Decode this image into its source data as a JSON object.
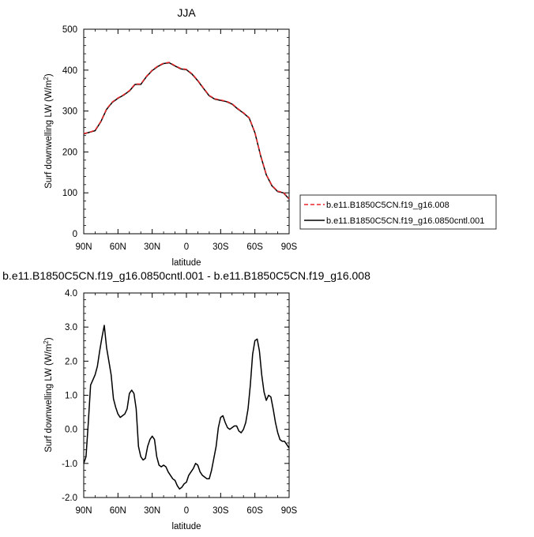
{
  "chart_data": [
    {
      "type": "line",
      "title": "JJA",
      "xlabel": "latitude",
      "ylabel_main": "Surf downwelling LW (W/m",
      "ylabel_sup": "2",
      "ylabel_close": ")",
      "xlim": [
        90,
        -90
      ],
      "ylim": [
        0,
        500
      ],
      "xticks": [
        90,
        60,
        30,
        0,
        -30,
        -60,
        -90
      ],
      "xtick_labels": [
        "90N",
        "60N",
        "30N",
        "0",
        "30S",
        "60S",
        "90S"
      ],
      "yticks": [
        0,
        100,
        200,
        300,
        400,
        500
      ],
      "ytick_labels": [
        "0",
        "100",
        "200",
        "300",
        "400",
        "500"
      ],
      "legend_position": "right",
      "series": [
        {
          "name": "b.e11.B1850C5CN.f19_g16.008",
          "color": "#e8262a",
          "dash": "dashed",
          "x": [
            90,
            85,
            80,
            75,
            70,
            65,
            60,
            55,
            50,
            45,
            40,
            35,
            30,
            25,
            20,
            15,
            10,
            5,
            0,
            -5,
            -10,
            -15,
            -20,
            -25,
            -30,
            -35,
            -40,
            -45,
            -50,
            -55,
            -60,
            -65,
            -70,
            -75,
            -80,
            -85,
            -90
          ],
          "y": [
            245,
            248,
            253,
            275,
            305,
            322,
            332,
            340,
            350,
            366,
            366,
            385,
            400,
            410,
            417,
            419,
            411,
            404,
            402,
            391,
            375,
            356,
            338,
            330,
            327,
            324,
            318,
            306,
            296,
            284,
            248,
            192,
            145,
            118,
            104,
            101,
            86
          ]
        },
        {
          "name": "b.e11.B1850C5CN.f19_g16.0850cntl.001",
          "color": "#000000",
          "dash": "solid",
          "x": [
            90,
            85,
            80,
            75,
            70,
            65,
            60,
            55,
            50,
            45,
            40,
            35,
            30,
            25,
            20,
            15,
            10,
            5,
            0,
            -5,
            -10,
            -15,
            -20,
            -25,
            -30,
            -35,
            -40,
            -45,
            -50,
            -55,
            -60,
            -65,
            -70,
            -75,
            -80,
            -85,
            -90
          ],
          "y": [
            244,
            248,
            252,
            274,
            304,
            321,
            331,
            339,
            349,
            365,
            365,
            384,
            399,
            409,
            416,
            418,
            410,
            403,
            401,
            390,
            374,
            355,
            337,
            329,
            326,
            323,
            317,
            305,
            295,
            283,
            247,
            191,
            144,
            117,
            103,
            100,
            85
          ]
        }
      ]
    },
    {
      "type": "line",
      "title": "b.e11.B1850C5CN.f19_g16.0850cntl.001 - b.e11.B1850C5CN.f19_g16.008",
      "xlabel": "latitude",
      "ylabel_main": "Surf downwelling LW (W/m",
      "ylabel_sup": "2",
      "ylabel_close": ")",
      "xlim": [
        90,
        -90
      ],
      "ylim": [
        -2.0,
        4.0
      ],
      "xticks": [
        90,
        60,
        30,
        0,
        -30,
        -60,
        -90
      ],
      "xtick_labels": [
        "90N",
        "60N",
        "30N",
        "0",
        "30S",
        "60S",
        "90S"
      ],
      "yticks": [
        -2.0,
        -1.0,
        0.0,
        1.0,
        2.0,
        3.0,
        4.0
      ],
      "ytick_labels": [
        "-2.0",
        "-1.0",
        "0.0",
        "1.0",
        "2.0",
        "3.0",
        "4.0"
      ],
      "series": [
        {
          "color": "#000000",
          "dash": "solid",
          "x": [
            90,
            88,
            86,
            84,
            82,
            80,
            78,
            76,
            74,
            72,
            70,
            68,
            66,
            64,
            62,
            60,
            58,
            56,
            54,
            52,
            50,
            48,
            46,
            44,
            42,
            40,
            38,
            36,
            34,
            32,
            30,
            28,
            26,
            24,
            22,
            20,
            18,
            16,
            14,
            12,
            10,
            8,
            6,
            4,
            2,
            0,
            -2,
            -4,
            -6,
            -8,
            -10,
            -12,
            -14,
            -16,
            -18,
            -20,
            -22,
            -24,
            -26,
            -28,
            -30,
            -32,
            -34,
            -36,
            -38,
            -40,
            -42,
            -44,
            -46,
            -48,
            -50,
            -52,
            -54,
            -56,
            -58,
            -60,
            -62,
            -64,
            -66,
            -68,
            -70,
            -72,
            -74,
            -76,
            -78,
            -80,
            -82,
            -84,
            -86,
            -88,
            -90
          ],
          "y": [
            -1.0,
            -0.8,
            0.2,
            1.3,
            1.45,
            1.6,
            1.85,
            2.3,
            2.7,
            3.05,
            2.4,
            2.0,
            1.6,
            0.9,
            0.65,
            0.45,
            0.35,
            0.4,
            0.45,
            0.6,
            1.05,
            1.15,
            1.05,
            0.6,
            -0.5,
            -0.8,
            -0.9,
            -0.85,
            -0.5,
            -0.3,
            -0.2,
            -0.3,
            -0.8,
            -1.05,
            -1.1,
            -1.05,
            -1.1,
            -1.25,
            -1.35,
            -1.45,
            -1.5,
            -1.65,
            -1.75,
            -1.7,
            -1.6,
            -1.55,
            -1.35,
            -1.25,
            -1.15,
            -1.0,
            -1.05,
            -1.25,
            -1.35,
            -1.4,
            -1.45,
            -1.45,
            -1.2,
            -0.85,
            -0.5,
            0.05,
            0.35,
            0.4,
            0.2,
            0.05,
            0.0,
            0.05,
            0.1,
            0.1,
            -0.05,
            -0.1,
            0.0,
            0.2,
            0.6,
            1.3,
            2.2,
            2.6,
            2.65,
            2.3,
            1.6,
            1.1,
            0.85,
            1.0,
            0.95,
            0.6,
            0.2,
            -0.1,
            -0.3,
            -0.35,
            -0.35,
            -0.45,
            -0.55
          ]
        }
      ]
    }
  ]
}
